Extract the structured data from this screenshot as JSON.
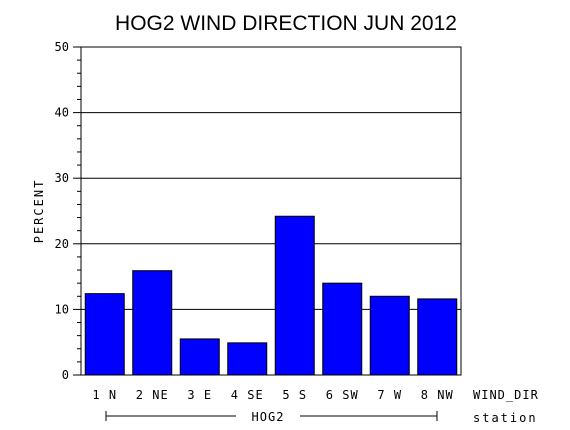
{
  "chart_data": {
    "type": "bar",
    "title": "HOG2 WIND DIRECTION JUN 2012",
    "ylabel": "PERCENT",
    "xlabel": "WIND_DIR",
    "group_label": "station",
    "group_name": "HOG2",
    "categories": [
      "1 N",
      "2 NE",
      "3 E",
      "4 SE",
      "5 S",
      "6 SW",
      "7 W",
      "8 NW"
    ],
    "values": [
      12.4,
      15.9,
      5.5,
      4.9,
      24.2,
      14.0,
      12.0,
      11.6
    ],
    "ylim": [
      0,
      50
    ],
    "yticks": [
      "0",
      "10",
      "20",
      "30",
      "40",
      "50"
    ],
    "grid": true,
    "bar_color": "#0000ff"
  }
}
